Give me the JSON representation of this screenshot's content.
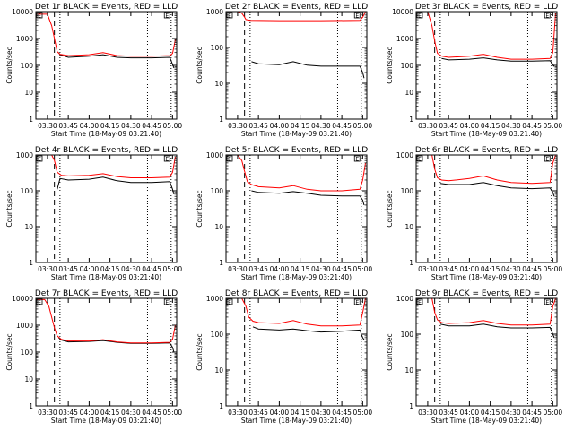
{
  "figure": {
    "xlabel": "Start Time (18-May-09 03:21:40)",
    "ylabel": "Counts/sec",
    "x_ticks": [
      "03:30",
      "03:45",
      "04:00",
      "04:15",
      "04:30",
      "04:45",
      "05:00"
    ],
    "box_marker": "E",
    "colors": {
      "events": "#000000",
      "lld": "#ff0000"
    }
  },
  "chart_data": [
    {
      "type": "line",
      "title": "Det 1r BLACK = Events, RED = LLD",
      "xlabel": "Start Time (18-May-09 03:21:40)",
      "ylabel": "Counts/sec",
      "y_scale": "log",
      "ylim": [
        1,
        10000
      ],
      "y_ticks": [
        "1",
        "10",
        "100",
        "1000",
        "10000"
      ],
      "x_ticks": [
        "03:30",
        "03:45",
        "04:00",
        "04:15",
        "04:30",
        "04:45",
        "05:00"
      ],
      "xlim": [
        "03:21:40",
        "05:03:00"
      ],
      "vlines": {
        "dashed": "03:35",
        "dotted": [
          "03:39",
          "04:42",
          "04:59"
        ]
      },
      "series": [
        {
          "color": "#000000",
          "x": [
            "03:35",
            "03:38",
            "03:39",
            "03:45",
            "04:00",
            "04:10",
            "04:20",
            "04:30",
            "04:45",
            "04:58",
            "05:00",
            "05:01"
          ],
          "values": [
            null,
            300,
            250,
            200,
            220,
            250,
            200,
            190,
            190,
            200,
            110,
            80
          ]
        },
        {
          "color": "#ff0000",
          "x": [
            "03:22",
            "03:30",
            "03:33",
            "03:35",
            "03:37",
            "03:39",
            "03:45",
            "04:00",
            "04:10",
            "04:20",
            "04:30",
            "04:45",
            "04:58",
            "05:00",
            "05:02"
          ],
          "values": [
            8000,
            8000,
            3000,
            1000,
            320,
            260,
            230,
            250,
            300,
            230,
            220,
            220,
            230,
            280,
            900
          ]
        }
      ]
    },
    {
      "type": "line",
      "title": "Det 2r BLACK = Events, RED = LLD",
      "xlabel": "Start Time (18-May-09 03:21:40)",
      "ylabel": "Counts/sec",
      "y_scale": "log",
      "ylim": [
        1,
        1000
      ],
      "y_ticks": [
        "1",
        "10",
        "100",
        "1000"
      ],
      "x_ticks": [
        "03:30",
        "03:45",
        "04:00",
        "04:15",
        "04:30",
        "04:45",
        "05:00"
      ],
      "xlim": [
        "03:21:40",
        "05:03:00"
      ],
      "vlines": {
        "dashed": "03:35",
        "dotted": [
          "03:39",
          "04:42",
          "04:59"
        ]
      },
      "series": [
        {
          "color": "#000000",
          "x": [
            "03:40",
            "03:45",
            "04:00",
            "04:10",
            "04:20",
            "04:30",
            "04:45",
            "04:58",
            "05:00",
            "05:01"
          ],
          "values": [
            40,
            35,
            33,
            40,
            32,
            30,
            30,
            30,
            20,
            14
          ]
        },
        {
          "color": "#ff0000",
          "x": [
            "03:22",
            "03:30",
            "03:33",
            "03:35",
            "03:36",
            "03:39",
            "04:00",
            "04:30",
            "04:58",
            "05:00",
            "05:02"
          ],
          "values": [
            1000,
            1000,
            900,
            700,
            600,
            570,
            560,
            560,
            570,
            700,
            1000
          ]
        }
      ]
    },
    {
      "type": "line",
      "title": "Det 3r BLACK = Events, RED = LLD",
      "xlabel": "Start Time (18-May-09 03:21:40)",
      "ylabel": "Counts/sec",
      "y_scale": "log",
      "ylim": [
        1,
        10000
      ],
      "y_ticks": [
        "1",
        "10",
        "100",
        "1000",
        "10000"
      ],
      "x_ticks": [
        "03:30",
        "03:45",
        "04:00",
        "04:15",
        "04:30",
        "04:45",
        "05:00"
      ],
      "xlim": [
        "03:21:40",
        "05:03:00"
      ],
      "vlines": {
        "dashed": "03:35",
        "dotted": [
          "03:39",
          "04:42",
          "04:59"
        ]
      },
      "series": [
        {
          "color": "#000000",
          "x": [
            "03:38",
            "03:40",
            "03:45",
            "04:00",
            "04:10",
            "04:20",
            "04:30",
            "04:45",
            "04:58",
            "05:00",
            "05:01"
          ],
          "values": [
            null,
            180,
            160,
            170,
            190,
            160,
            145,
            145,
            150,
            110,
            90
          ]
        },
        {
          "color": "#ff0000",
          "x": [
            "03:22",
            "03:30",
            "03:33",
            "03:35",
            "03:37",
            "03:40",
            "03:45",
            "04:00",
            "04:10",
            "04:20",
            "04:30",
            "04:45",
            "04:58",
            "05:00",
            "05:02"
          ],
          "values": [
            10000,
            10000,
            3000,
            800,
            280,
            220,
            200,
            220,
            260,
            200,
            170,
            170,
            180,
            300,
            9000
          ]
        }
      ]
    },
    {
      "type": "line",
      "title": "Det 4r BLACK = Events, RED = LLD",
      "xlabel": "Start Time (18-May-09 03:21:40)",
      "ylabel": "Counts/sec",
      "y_scale": "log",
      "ylim": [
        1,
        1000
      ],
      "y_ticks": [
        "1",
        "10",
        "100",
        "1000"
      ],
      "x_ticks": [
        "03:30",
        "03:45",
        "04:00",
        "04:15",
        "04:30",
        "04:45",
        "05:00"
      ],
      "xlim": [
        "03:21:40",
        "05:03:00"
      ],
      "vlines": {
        "dashed": "03:35",
        "dotted": [
          "03:39",
          "04:42",
          "04:59"
        ]
      },
      "series": [
        {
          "color": "#000000",
          "x": [
            "03:37",
            "03:39",
            "03:45",
            "04:00",
            "04:10",
            "04:20",
            "04:30",
            "04:45",
            "04:58",
            "05:00",
            "05:01"
          ],
          "values": [
            110,
            220,
            200,
            210,
            240,
            190,
            170,
            170,
            180,
            110,
            80
          ]
        },
        {
          "color": "#ff0000",
          "x": [
            "03:22",
            "03:30",
            "03:33",
            "03:35",
            "03:37",
            "03:40",
            "03:45",
            "04:00",
            "04:10",
            "04:20",
            "04:30",
            "04:45",
            "04:58",
            "05:00",
            "05:02"
          ],
          "values": [
            1000,
            1000,
            1000,
            700,
            330,
            270,
            260,
            270,
            300,
            250,
            230,
            230,
            240,
            330,
            900
          ]
        }
      ]
    },
    {
      "type": "line",
      "title": "Det 5r BLACK = Events, RED = LLD",
      "xlabel": "Start Time (18-May-09 03:21:40)",
      "ylabel": "Counts/sec",
      "y_scale": "log",
      "ylim": [
        1,
        1000
      ],
      "y_ticks": [
        "1",
        "10",
        "100",
        "1000"
      ],
      "x_ticks": [
        "03:30",
        "03:45",
        "04:00",
        "04:15",
        "04:30",
        "04:45",
        "05:00"
      ],
      "xlim": [
        "03:21:40",
        "05:03:00"
      ],
      "vlines": {
        "dashed": "03:35",
        "dotted": [
          "03:39",
          "04:42",
          "04:59"
        ]
      },
      "series": [
        {
          "color": "#000000",
          "x": [
            "03:38",
            "03:40",
            "03:45",
            "04:00",
            "04:10",
            "04:20",
            "04:30",
            "04:45",
            "04:58",
            "05:00",
            "05:01"
          ],
          "values": [
            null,
            100,
            90,
            85,
            95,
            85,
            75,
            72,
            72,
            55,
            40
          ]
        },
        {
          "color": "#ff0000",
          "x": [
            "03:22",
            "03:30",
            "03:33",
            "03:35",
            "03:37",
            "03:40",
            "03:45",
            "04:00",
            "04:10",
            "04:20",
            "04:30",
            "04:45",
            "04:58",
            "05:00",
            "05:02"
          ],
          "values": [
            1000,
            1000,
            700,
            350,
            180,
            150,
            130,
            120,
            140,
            110,
            100,
            100,
            110,
            200,
            600
          ]
        }
      ]
    },
    {
      "type": "line",
      "title": "Det 6r BLACK = Events, RED = LLD",
      "xlabel": "Start Time (18-May-09 03:21:40)",
      "ylabel": "Counts/sec",
      "y_scale": "log",
      "ylim": [
        1,
        1000
      ],
      "y_ticks": [
        "1",
        "10",
        "100",
        "1000"
      ],
      "x_ticks": [
        "03:30",
        "03:45",
        "04:00",
        "04:15",
        "04:30",
        "04:45",
        "05:00"
      ],
      "xlim": [
        "03:21:40",
        "05:03:00"
      ],
      "vlines": {
        "dashed": "03:35",
        "dotted": [
          "03:39",
          "04:42",
          "04:59"
        ]
      },
      "series": [
        {
          "color": "#000000",
          "x": [
            "03:37",
            "03:39",
            "03:45",
            "04:00",
            "04:10",
            "04:20",
            "04:30",
            "04:45",
            "04:58",
            "05:00",
            "05:01"
          ],
          "values": [
            null,
            160,
            150,
            150,
            170,
            140,
            120,
            115,
            120,
            90,
            70
          ]
        },
        {
          "color": "#ff0000",
          "x": [
            "03:22",
            "03:30",
            "03:33",
            "03:35",
            "03:37",
            "03:40",
            "03:45",
            "04:00",
            "04:10",
            "04:20",
            "04:30",
            "04:45",
            "04:58",
            "05:00",
            "05:02"
          ],
          "values": [
            1000,
            1000,
            1000,
            400,
            230,
            200,
            190,
            220,
            260,
            200,
            170,
            160,
            170,
            600,
            1000
          ]
        }
      ]
    },
    {
      "type": "line",
      "title": "Det 7r BLACK = Events, RED = LLD",
      "xlabel": "Start Time (18-May-09 03:21:40)",
      "ylabel": "Counts/sec",
      "y_scale": "log",
      "ylim": [
        1,
        10000
      ],
      "y_ticks": [
        "1",
        "10",
        "100",
        "1000",
        "10000"
      ],
      "x_ticks": [
        "03:30",
        "03:45",
        "04:00",
        "04:15",
        "04:30",
        "04:45",
        "05:00"
      ],
      "xlim": [
        "03:21:40",
        "05:03:00"
      ],
      "vlines": {
        "dashed": "03:35",
        "dotted": [
          "03:39",
          "04:42",
          "04:59"
        ]
      },
      "series": [
        {
          "color": "#000000",
          "x": [
            "03:36",
            "03:38",
            "03:40",
            "03:45",
            "04:00",
            "04:10",
            "04:20",
            "04:30",
            "04:45",
            "04:58",
            "05:00",
            "05:01"
          ],
          "values": [
            null,
            350,
            280,
            240,
            250,
            270,
            230,
            210,
            210,
            220,
            150,
            100
          ]
        },
        {
          "color": "#ff0000",
          "x": [
            "03:22",
            "03:28",
            "03:31",
            "03:33",
            "03:35",
            "03:37",
            "03:40",
            "03:45",
            "04:00",
            "04:10",
            "04:20",
            "04:30",
            "04:45",
            "04:58",
            "05:00",
            "05:02"
          ],
          "values": [
            9000,
            9000,
            5000,
            2000,
            800,
            400,
            300,
            260,
            260,
            290,
            240,
            220,
            220,
            230,
            300,
            1000
          ]
        }
      ]
    },
    {
      "type": "line",
      "title": "Det 8r BLACK = Events, RED = LLD",
      "xlabel": "Start Time (18-May-09 03:21:40)",
      "ylabel": "Counts/sec",
      "y_scale": "log",
      "ylim": [
        1,
        1000
      ],
      "y_ticks": [
        "1",
        "10",
        "100",
        "1000"
      ],
      "x_ticks": [
        "03:30",
        "03:45",
        "04:00",
        "04:15",
        "04:30",
        "04:45",
        "05:00"
      ],
      "xlim": [
        "03:21:40",
        "05:03:00"
      ],
      "vlines": {
        "dashed": "03:35",
        "dotted": [
          "03:39",
          "04:42",
          "04:59"
        ]
      },
      "series": [
        {
          "color": "#000000",
          "x": [
            "03:39",
            "03:41",
            "03:45",
            "04:00",
            "04:10",
            "04:20",
            "04:30",
            "04:45",
            "04:58",
            "05:00",
            "05:01"
          ],
          "values": [
            null,
            160,
            140,
            130,
            140,
            125,
            115,
            120,
            130,
            80,
            70
          ]
        },
        {
          "color": "#ff0000",
          "x": [
            "03:22",
            "03:30",
            "03:33",
            "03:36",
            "03:38",
            "03:41",
            "03:45",
            "04:00",
            "04:10",
            "04:20",
            "04:30",
            "04:45",
            "04:58",
            "05:00",
            "05:02"
          ],
          "values": [
            1000,
            1000,
            1000,
            600,
            300,
            230,
            210,
            200,
            240,
            190,
            170,
            170,
            180,
            400,
            1000
          ]
        }
      ]
    },
    {
      "type": "line",
      "title": "Det 9r BLACK = Events, RED = LLD",
      "xlabel": "Start Time (18-May-09 03:21:40)",
      "ylabel": "Counts/sec",
      "y_scale": "log",
      "ylim": [
        1,
        1000
      ],
      "y_ticks": [
        "1",
        "10",
        "100",
        "1000"
      ],
      "x_ticks": [
        "03:30",
        "03:45",
        "04:00",
        "04:15",
        "04:30",
        "04:45",
        "05:00"
      ],
      "xlim": [
        "03:21:40",
        "05:03:00"
      ],
      "vlines": {
        "dashed": "03:35",
        "dotted": [
          "03:39",
          "04:42",
          "04:59"
        ]
      },
      "series": [
        {
          "color": "#000000",
          "x": [
            "03:37",
            "03:39",
            "03:45",
            "04:00",
            "04:10",
            "04:20",
            "04:30",
            "04:45",
            "04:58",
            "05:00",
            "05:01"
          ],
          "values": [
            null,
            190,
            170,
            170,
            190,
            160,
            150,
            150,
            155,
            100,
            80
          ]
        },
        {
          "color": "#ff0000",
          "x": [
            "03:22",
            "03:30",
            "03:33",
            "03:35",
            "03:37",
            "03:40",
            "03:45",
            "04:00",
            "04:10",
            "04:20",
            "04:30",
            "04:45",
            "04:58",
            "05:00",
            "05:02"
          ],
          "values": [
            1000,
            1000,
            1000,
            400,
            250,
            210,
            200,
            210,
            240,
            200,
            180,
            180,
            190,
            600,
            1000
          ]
        }
      ]
    }
  ]
}
